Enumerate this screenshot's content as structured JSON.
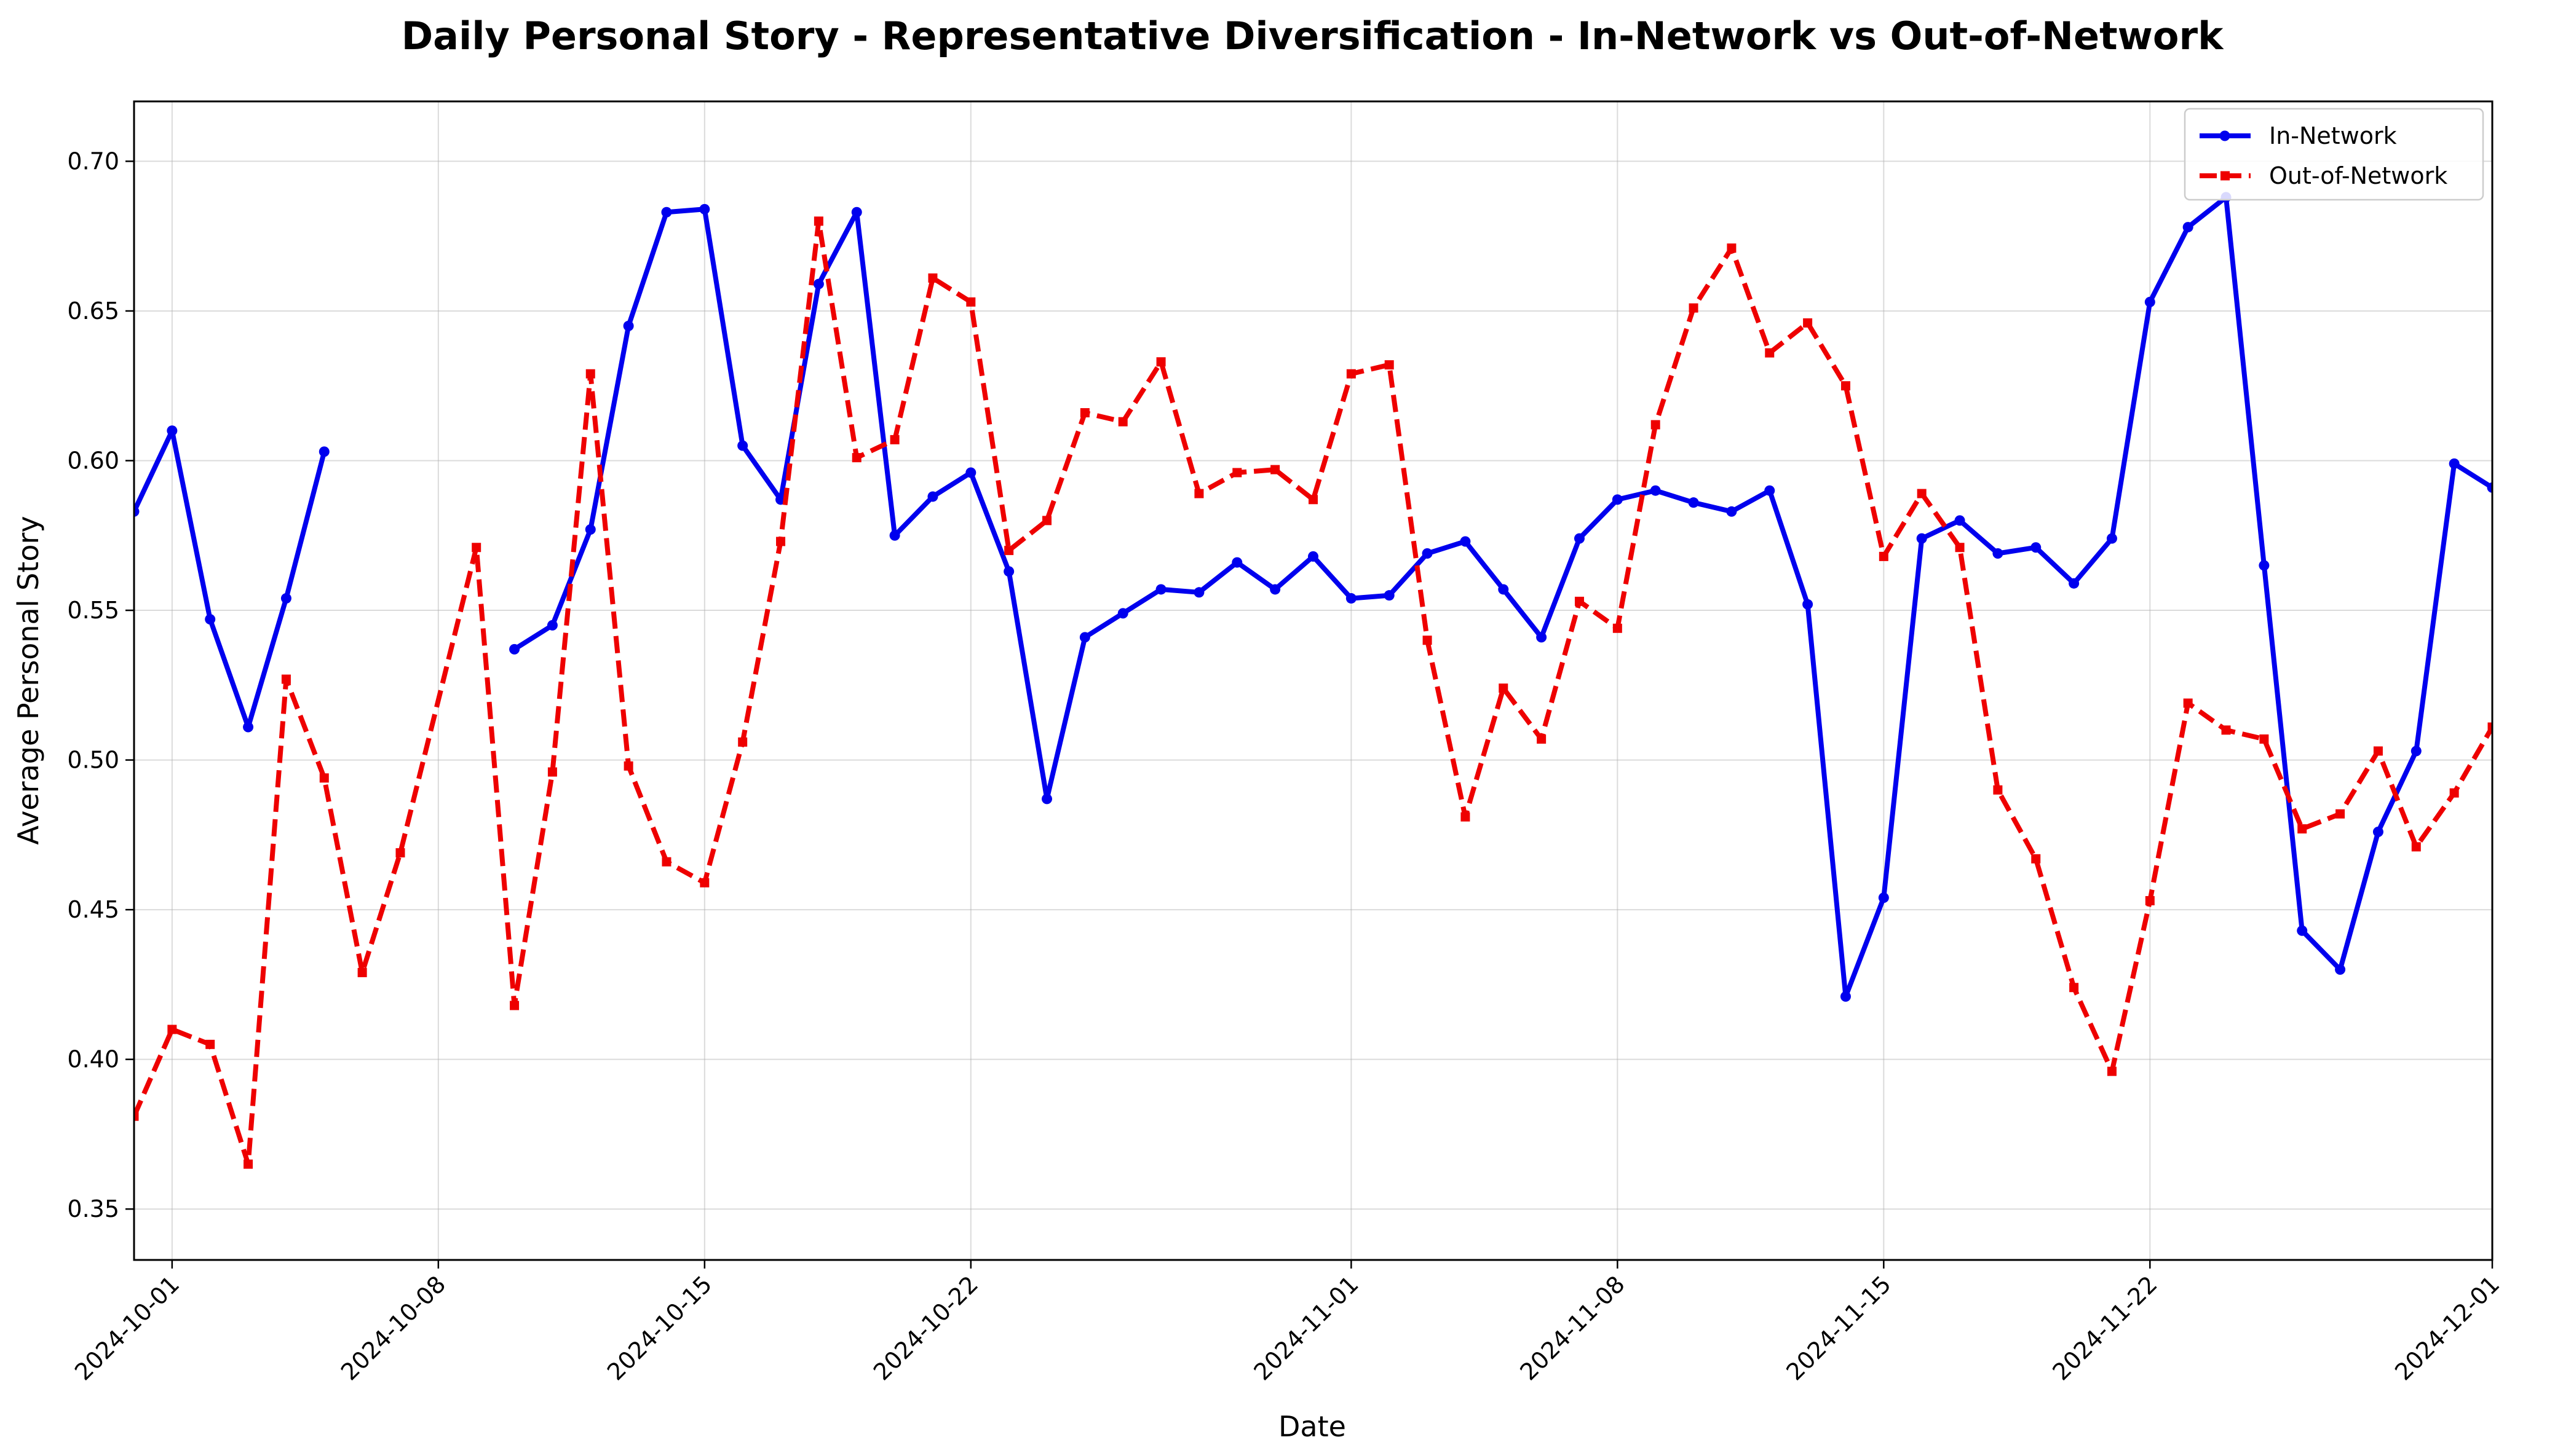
{
  "chart_data": {
    "type": "line",
    "title": "Daily Personal Story - Representative Diversification - In-Network vs Out-of-Network",
    "xlabel": "Date",
    "ylabel": "Average Personal Story",
    "x_start": "2024-09-30",
    "x_end": "2024-12-01",
    "ylim": [
      0.333,
      0.72
    ],
    "x_ticks": [
      "2024-10-01",
      "2024-10-08",
      "2024-10-15",
      "2024-10-22",
      "2024-11-01",
      "2024-11-08",
      "2024-11-15",
      "2024-11-22",
      "2024-12-01"
    ],
    "y_ticks": [
      "0.35",
      "0.40",
      "0.45",
      "0.50",
      "0.55",
      "0.60",
      "0.65",
      "0.70"
    ],
    "grid": true,
    "legend_position": "top-right",
    "series": [
      {
        "name": "In-Network",
        "color": "#0000ee",
        "line_style": "solid",
        "marker": "circle",
        "points": [
          [
            "2024-09-30",
            0.583
          ],
          [
            "2024-10-01",
            0.61
          ],
          [
            "2024-10-02",
            0.547
          ],
          [
            "2024-10-03",
            0.511
          ],
          [
            "2024-10-04",
            0.554
          ],
          [
            "2024-10-05",
            0.603
          ],
          null,
          [
            "2024-10-10",
            0.537
          ],
          [
            "2024-10-11",
            0.545
          ],
          [
            "2024-10-12",
            0.577
          ],
          [
            "2024-10-13",
            0.645
          ],
          [
            "2024-10-14",
            0.683
          ],
          [
            "2024-10-15",
            0.684
          ],
          [
            "2024-10-16",
            0.605
          ],
          [
            "2024-10-17",
            0.587
          ],
          [
            "2024-10-18",
            0.659
          ],
          [
            "2024-10-19",
            0.683
          ],
          [
            "2024-10-20",
            0.575
          ],
          [
            "2024-10-21",
            0.588
          ],
          [
            "2024-10-22",
            0.596
          ],
          [
            "2024-10-23",
            0.563
          ],
          [
            "2024-10-24",
            0.487
          ],
          [
            "2024-10-25",
            0.541
          ],
          [
            "2024-10-26",
            0.549
          ],
          [
            "2024-10-27",
            0.557
          ],
          [
            "2024-10-28",
            0.556
          ],
          [
            "2024-10-29",
            0.566
          ],
          [
            "2024-10-30",
            0.557
          ],
          [
            "2024-10-31",
            0.568
          ],
          [
            "2024-11-01",
            0.554
          ],
          [
            "2024-11-02",
            0.555
          ],
          [
            "2024-11-03",
            0.569
          ],
          [
            "2024-11-04",
            0.573
          ],
          [
            "2024-11-05",
            0.557
          ],
          [
            "2024-11-06",
            0.541
          ],
          [
            "2024-11-07",
            0.574
          ],
          [
            "2024-11-08",
            0.587
          ],
          [
            "2024-11-09",
            0.59
          ],
          [
            "2024-11-10",
            0.586
          ],
          [
            "2024-11-11",
            0.583
          ],
          [
            "2024-11-12",
            0.59
          ],
          [
            "2024-11-13",
            0.552
          ],
          [
            "2024-11-14",
            0.421
          ],
          [
            "2024-11-15",
            0.454
          ],
          [
            "2024-11-16",
            0.574
          ],
          [
            "2024-11-17",
            0.58
          ],
          [
            "2024-11-18",
            0.569
          ],
          [
            "2024-11-19",
            0.571
          ],
          [
            "2024-11-20",
            0.559
          ],
          [
            "2024-11-21",
            0.574
          ],
          [
            "2024-11-22",
            0.653
          ],
          [
            "2024-11-23",
            0.678
          ],
          [
            "2024-11-24",
            0.688
          ],
          [
            "2024-11-25",
            0.565
          ],
          [
            "2024-11-26",
            0.443
          ],
          [
            "2024-11-27",
            0.43
          ],
          [
            "2024-11-28",
            0.476
          ],
          [
            "2024-11-29",
            0.503
          ],
          [
            "2024-11-30",
            0.599
          ],
          [
            "2024-12-01",
            0.591
          ]
        ]
      },
      {
        "name": "Out-of-Network",
        "color": "#ee0000",
        "line_style": "dashed",
        "marker": "square",
        "points": [
          [
            "2024-09-30",
            0.381
          ],
          [
            "2024-10-01",
            0.41
          ],
          [
            "2024-10-02",
            0.405
          ],
          [
            "2024-10-03",
            0.365
          ],
          [
            "2024-10-04",
            0.527
          ],
          [
            "2024-10-05",
            0.494
          ],
          [
            "2024-10-06",
            0.429
          ],
          [
            "2024-10-07",
            0.469
          ],
          [
            "2024-10-09",
            0.571
          ],
          [
            "2024-10-10",
            0.418
          ],
          [
            "2024-10-11",
            0.496
          ],
          [
            "2024-10-12",
            0.629
          ],
          [
            "2024-10-13",
            0.498
          ],
          [
            "2024-10-14",
            0.466
          ],
          [
            "2024-10-15",
            0.459
          ],
          [
            "2024-10-16",
            0.506
          ],
          [
            "2024-10-17",
            0.573
          ],
          [
            "2024-10-18",
            0.68
          ],
          [
            "2024-10-19",
            0.601
          ],
          [
            "2024-10-20",
            0.607
          ],
          [
            "2024-10-21",
            0.661
          ],
          [
            "2024-10-22",
            0.653
          ],
          [
            "2024-10-23",
            0.57
          ],
          [
            "2024-10-24",
            0.58
          ],
          [
            "2024-10-25",
            0.616
          ],
          [
            "2024-10-26",
            0.613
          ],
          [
            "2024-10-27",
            0.633
          ],
          [
            "2024-10-28",
            0.589
          ],
          [
            "2024-10-29",
            0.596
          ],
          [
            "2024-10-30",
            0.597
          ],
          [
            "2024-10-31",
            0.587
          ],
          [
            "2024-11-01",
            0.629
          ],
          [
            "2024-11-02",
            0.632
          ],
          [
            "2024-11-03",
            0.54
          ],
          [
            "2024-11-04",
            0.481
          ],
          [
            "2024-11-05",
            0.524
          ],
          [
            "2024-11-06",
            0.507
          ],
          [
            "2024-11-07",
            0.553
          ],
          [
            "2024-11-08",
            0.544
          ],
          [
            "2024-11-09",
            0.612
          ],
          [
            "2024-11-10",
            0.651
          ],
          [
            "2024-11-11",
            0.671
          ],
          [
            "2024-11-12",
            0.636
          ],
          [
            "2024-11-13",
            0.646
          ],
          [
            "2024-11-14",
            0.625
          ],
          [
            "2024-11-15",
            0.568
          ],
          [
            "2024-11-16",
            0.589
          ],
          [
            "2024-11-17",
            0.571
          ],
          [
            "2024-11-18",
            0.49
          ],
          [
            "2024-11-19",
            0.467
          ],
          [
            "2024-11-20",
            0.424
          ],
          [
            "2024-11-21",
            0.396
          ],
          [
            "2024-11-22",
            0.453
          ],
          [
            "2024-11-23",
            0.519
          ],
          [
            "2024-11-24",
            0.51
          ],
          [
            "2024-11-25",
            0.507
          ],
          [
            "2024-11-26",
            0.477
          ],
          [
            "2024-11-27",
            0.482
          ],
          [
            "2024-11-28",
            0.503
          ],
          [
            "2024-11-29",
            0.471
          ],
          [
            "2024-11-30",
            0.489
          ],
          [
            "2024-12-01",
            0.511
          ]
        ]
      }
    ]
  }
}
